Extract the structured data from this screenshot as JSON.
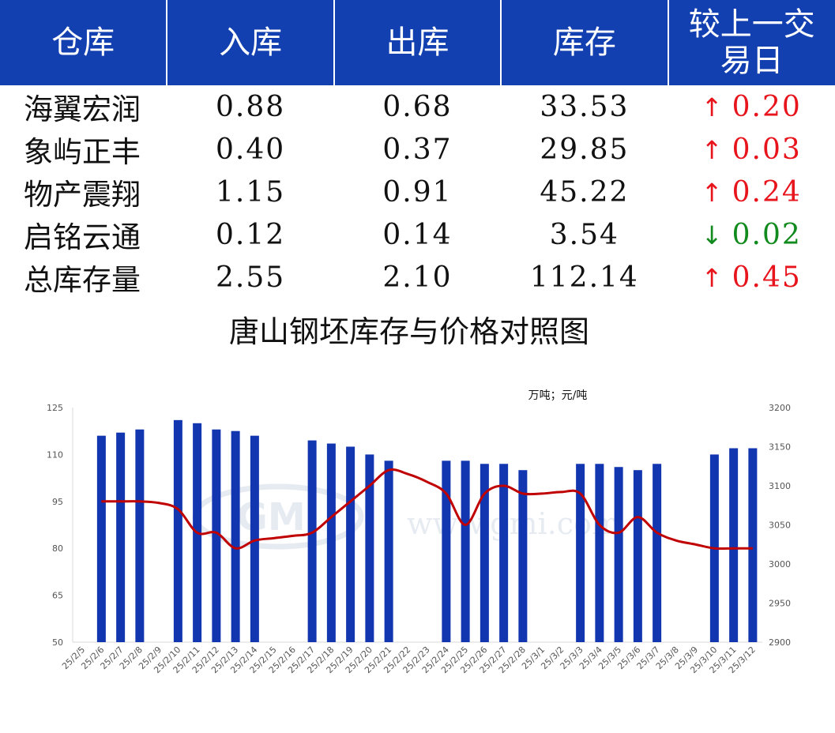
{
  "table": {
    "headers": [
      "仓库",
      "入库",
      "出库",
      "库存",
      "较上一交易日"
    ],
    "rows": [
      {
        "name": "海翼宏润",
        "in": "0.88",
        "out": "0.68",
        "stock": "33.53",
        "arrow": "↑",
        "change": "0.20",
        "dir": "up"
      },
      {
        "name": "象屿正丰",
        "in": "0.40",
        "out": "0.37",
        "stock": "29.85",
        "arrow": "↑",
        "change": "0.03",
        "dir": "up"
      },
      {
        "name": "物产震翔",
        "in": "1.15",
        "out": "0.91",
        "stock": "45.22",
        "arrow": "↑",
        "change": "0.24",
        "dir": "up"
      },
      {
        "name": "启铭云通",
        "in": "0.12",
        "out": "0.14",
        "stock": "3.54",
        "arrow": "↓",
        "change": "0.02",
        "dir": "down"
      },
      {
        "name": "总库存量",
        "in": "2.55",
        "out": "2.10",
        "stock": "112.14",
        "arrow": "↑",
        "change": "0.45",
        "dir": "up"
      }
    ]
  },
  "colors": {
    "header_bg": "#1340b0",
    "bar": "#1235b0",
    "line": "#c00000",
    "up": "#e8141c",
    "down": "#118a1e"
  },
  "chart_data": {
    "type": "bar+line",
    "title": "唐山钢坯库存与价格对照图",
    "unit_label": "万吨；元/吨",
    "watermark": "www.gmi.com",
    "categories": [
      "25/2/5",
      "25/2/6",
      "25/2/7",
      "25/2/8",
      "25/2/9",
      "25/2/10",
      "25/2/11",
      "25/2/12",
      "25/2/13",
      "25/2/14",
      "25/2/15",
      "25/2/16",
      "25/2/17",
      "25/2/18",
      "25/2/19",
      "25/2/20",
      "25/2/21",
      "25/2/22",
      "25/2/23",
      "25/2/24",
      "25/2/25",
      "25/2/26",
      "25/2/27",
      "25/2/28",
      "25/3/1",
      "25/3/2",
      "25/3/3",
      "25/3/4",
      "25/3/5",
      "25/3/6",
      "25/3/7",
      "25/3/8",
      "25/3/9",
      "25/3/10",
      "25/3/11",
      "25/3/12"
    ],
    "series": [
      {
        "axis": "left",
        "kind": "bar",
        "values": [
          null,
          116,
          117,
          118,
          null,
          121,
          120,
          118,
          117.5,
          116,
          null,
          null,
          114.5,
          113.5,
          112.5,
          110,
          108,
          null,
          null,
          108,
          108,
          107,
          107,
          105,
          null,
          null,
          107,
          107,
          106,
          105,
          107,
          null,
          null,
          110,
          112,
          112
        ]
      },
      {
        "axis": "right",
        "kind": "line",
        "values": [
          null,
          3080,
          3080,
          3080,
          3078,
          3070,
          3040,
          3040,
          3020,
          3030,
          3033,
          3036,
          3040,
          3060,
          3080,
          3100,
          3120,
          3115,
          3105,
          3090,
          3050,
          3090,
          3100,
          3090,
          3090,
          3092,
          3090,
          3050,
          3040,
          3060,
          3040,
          3030,
          3025,
          3020,
          3020,
          3020
        ]
      }
    ],
    "ylim_left": [
      50,
      125
    ],
    "yticks_left": [
      50,
      65,
      80,
      95,
      110,
      125
    ],
    "ylim_right": [
      2900,
      3200
    ],
    "yticks_right": [
      2900,
      2950,
      3000,
      3050,
      3100,
      3150,
      3200
    ],
    "grid": false
  }
}
